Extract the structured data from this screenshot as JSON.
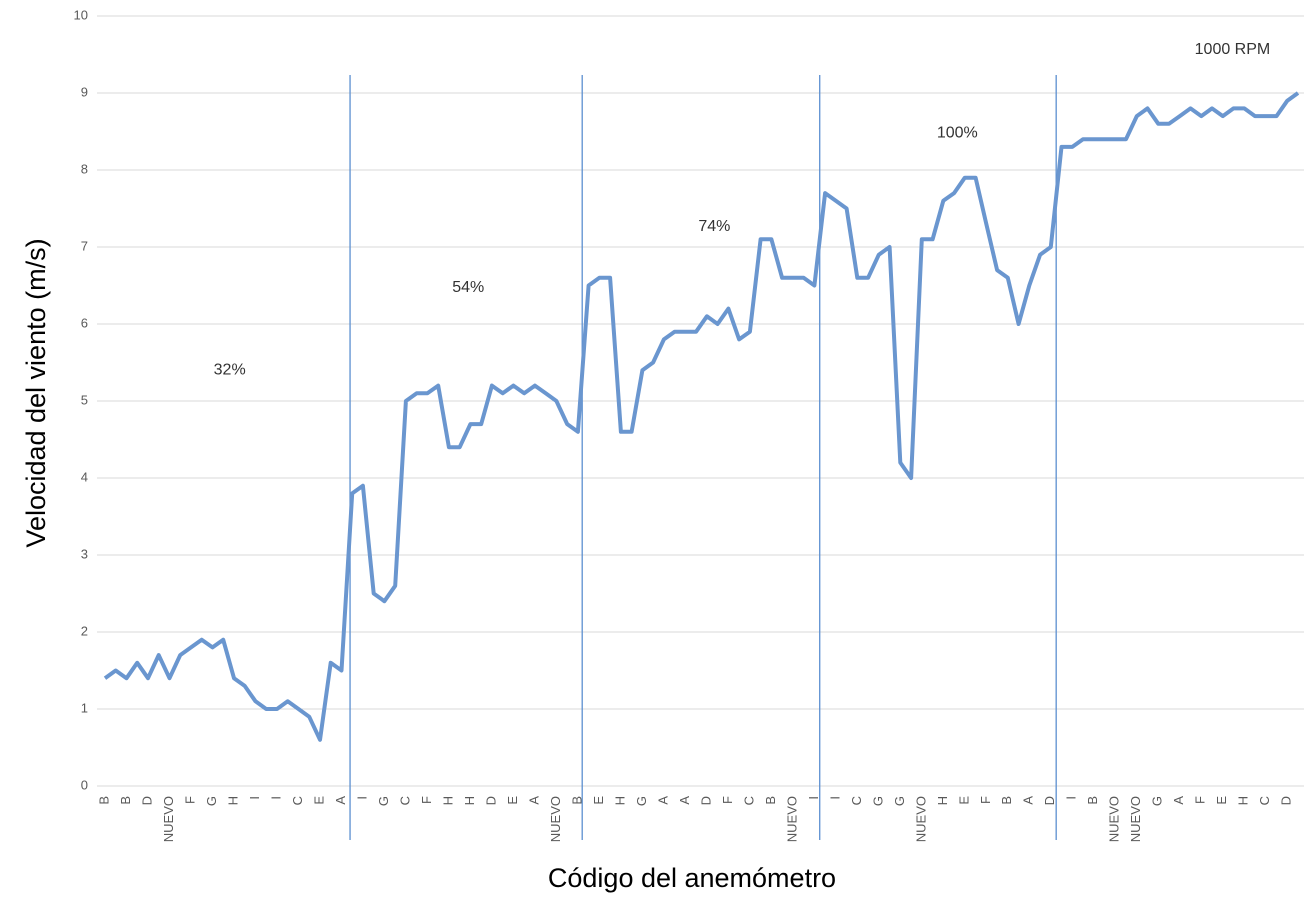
{
  "chart_data": {
    "type": "line",
    "y_label": "Velocidad del viento (m/s)",
    "x_label": "Código del anemómetro",
    "categories": [
      "B",
      null,
      "B",
      null,
      "D",
      null,
      "NUEVO",
      null,
      "F",
      null,
      "G",
      null,
      "H",
      null,
      "I",
      null,
      "I",
      null,
      "C",
      null,
      "E",
      null,
      "A",
      null,
      "I",
      null,
      "G",
      null,
      "C",
      null,
      "F",
      null,
      "H",
      null,
      "H",
      null,
      "D",
      null,
      "E",
      null,
      "A",
      null,
      "NUEVO",
      null,
      "B",
      null,
      "E",
      null,
      "H",
      null,
      "G",
      null,
      "A",
      null,
      "A",
      null,
      "D",
      null,
      "F",
      null,
      "C",
      null,
      "B",
      null,
      "NUEVO",
      null,
      "I",
      null,
      "I",
      null,
      "C",
      null,
      "G",
      null,
      "G",
      null,
      "NUEVO",
      null,
      "H",
      null,
      "E",
      null,
      "F",
      null,
      "B",
      null,
      "A",
      null,
      "D",
      null,
      "I",
      null,
      "B",
      null,
      "NUEVO",
      null,
      "NUEVO",
      null,
      "G",
      null,
      "A",
      null,
      "F",
      null,
      "E",
      null,
      "H",
      null,
      "C",
      null,
      "D",
      null
    ],
    "values": [
      1.4,
      1.5,
      1.4,
      1.6,
      1.4,
      1.7,
      1.4,
      1.7,
      1.8,
      1.9,
      1.8,
      1.9,
      1.4,
      1.3,
      1.1,
      1.0,
      1.0,
      1.1,
      1.0,
      0.9,
      0.6,
      1.6,
      1.5,
      3.8,
      3.9,
      2.5,
      2.4,
      2.6,
      5.0,
      5.1,
      5.1,
      5.2,
      4.4,
      4.4,
      4.7,
      4.7,
      5.2,
      5.1,
      5.2,
      5.1,
      5.2,
      5.1,
      5.0,
      4.7,
      4.6,
      6.5,
      6.6,
      6.6,
      4.6,
      4.6,
      5.4,
      5.5,
      5.8,
      5.9,
      5.9,
      5.9,
      6.1,
      6.0,
      6.2,
      5.8,
      5.9,
      7.1,
      7.1,
      6.6,
      6.6,
      6.6,
      6.5,
      7.7,
      7.6,
      7.5,
      6.6,
      6.6,
      6.9,
      7.0,
      4.2,
      4.0,
      7.1,
      7.1,
      7.6,
      7.7,
      7.9,
      7.9,
      7.3,
      6.7,
      6.6,
      6.0,
      6.5,
      6.9,
      7.0,
      8.3,
      8.3,
      8.4,
      8.4,
      8.4,
      8.4,
      8.4,
      8.7,
      8.8,
      8.6,
      8.6,
      8.7,
      8.8,
      8.7,
      8.8,
      8.7,
      8.8,
      8.8,
      8.7,
      8.7,
      8.7,
      8.9,
      9.0
    ],
    "color": "#6a96cf",
    "separators": [
      22.8,
      44.4,
      66.5,
      88.5
    ],
    "separator_color": "#5b8fd0",
    "annotations": [
      {
        "text": "32%",
        "x": 11.6,
        "y": 5.4
      },
      {
        "text": "54%",
        "x": 33.8,
        "y": 6.47
      },
      {
        "text": "74%",
        "x": 56.7,
        "y": 7.26
      },
      {
        "text": "100%",
        "x": 79.3,
        "y": 8.48
      },
      {
        "text": "1000 RPM",
        "x": 104.9,
        "y": 9.56
      }
    ],
    "ylim": [
      0,
      10
    ],
    "yticks": [
      0,
      1,
      2,
      3,
      4,
      5,
      6,
      7,
      8,
      9,
      10
    ],
    "grid": true
  }
}
